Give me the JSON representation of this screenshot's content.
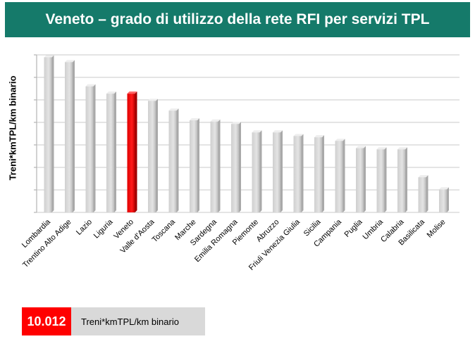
{
  "header": {
    "title": "Veneto – grado di utilizzo della rete RFI per servizi TPL"
  },
  "colors": {
    "header_bg": "#157a6a",
    "bar": "#d9d9d9",
    "highlight": "#ff0000"
  },
  "chart_data": {
    "type": "bar",
    "title": "Veneto – grado di utilizzo della rete RFI per servizi TPL",
    "ylabel": "Treni*kmTPL/km binario",
    "xlabel": "",
    "grid": true,
    "ylim": [
      0,
      6.5
    ],
    "highlight_category": "Veneto",
    "categories": [
      "Lombardia",
      "Trentino Alto Adige",
      "Lazio",
      "Liguria",
      "Veneto",
      "Valle d'Aosta",
      "Toscana",
      "Marche",
      "Sardegna",
      "Emilia Romagna",
      "Piemonte",
      "Abruzzo",
      "Friuli Venezia Giulia",
      "Sicilia",
      "Campania",
      "Puglia",
      "Umbria",
      "Calabria",
      "Basilicata",
      "Molise"
    ],
    "values": [
      6.4,
      6.2,
      5.2,
      4.9,
      4.9,
      4.6,
      4.2,
      3.8,
      3.75,
      3.65,
      3.3,
      3.3,
      3.15,
      3.1,
      2.95,
      2.65,
      2.6,
      2.6,
      1.45,
      0.95
    ]
  },
  "footer": {
    "value": "10.012",
    "unit": "Treni*kmTPL/km binario"
  }
}
